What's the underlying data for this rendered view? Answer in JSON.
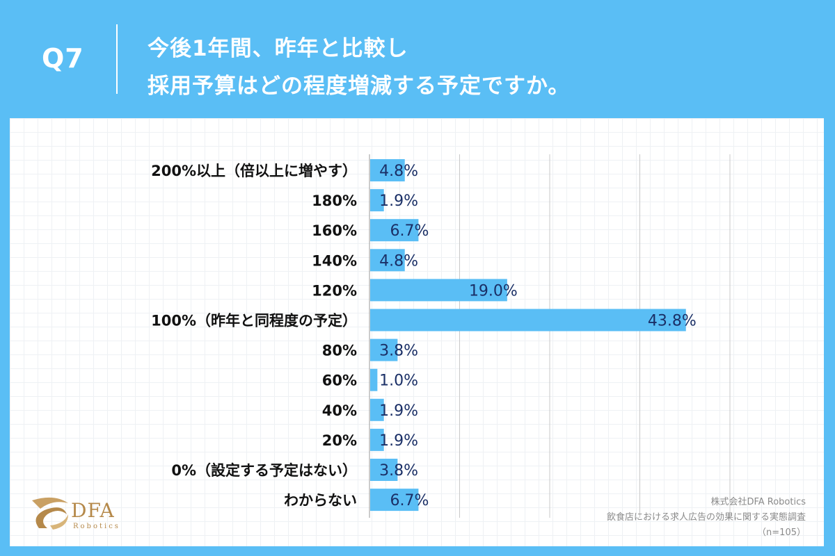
{
  "header": {
    "q_label": "Q7",
    "title_line1": "今後1年間、昨年と比較し",
    "title_line2": "採用予算はどの程度増減する予定ですか。"
  },
  "colors": {
    "background": "#5ABEF5",
    "bar": "#5ABEF5",
    "value_text": "#1a2f66"
  },
  "chart_data": {
    "type": "bar",
    "orientation": "horizontal",
    "title": "今後1年間、昨年と比較し採用予算はどの程度増減する予定ですか。",
    "unit": "%",
    "xlim": [
      0,
      50
    ],
    "grid": true,
    "categories": [
      "200%以上（倍以上に増やす）",
      "180%",
      "160%",
      "140%",
      "120%",
      "100%（昨年と同程度の予定）",
      "80%",
      "60%",
      "40%",
      "20%",
      "0%（設定する予定はない）",
      "わからない"
    ],
    "values": [
      4.8,
      1.9,
      6.7,
      4.8,
      19.0,
      43.8,
      3.8,
      1.0,
      1.9,
      1.9,
      3.8,
      6.7
    ],
    "value_labels": [
      "4.8%",
      "1.9%",
      "6.7%",
      "4.8%",
      "19.0%",
      "43.8%",
      "3.8%",
      "1.0%",
      "1.9%",
      "1.9%",
      "3.8%",
      "6.7%"
    ]
  },
  "logo": {
    "name": "DFA",
    "sub": "Robotics"
  },
  "source": {
    "line1": "株式会社DFA Robotics",
    "line2": "飲食店における求人広告の効果に関する実態調査",
    "line3": "（n=105）"
  }
}
